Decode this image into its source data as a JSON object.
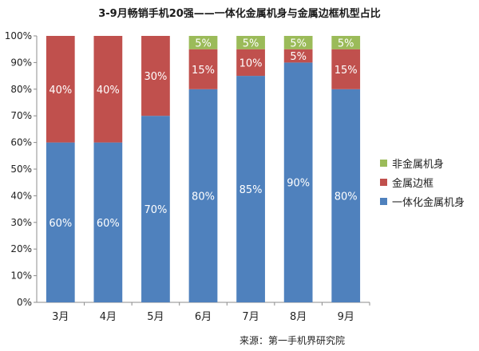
{
  "chart_data": {
    "type": "bar",
    "stacked": true,
    "title": "3-9月畅销手机20强——一体化金属机身与金属边框机型占比",
    "categories": [
      "3月",
      "4月",
      "5月",
      "6月",
      "7月",
      "8月",
      "9月"
    ],
    "series": [
      {
        "name": "一体化金属机身",
        "color": "#4f81bd",
        "values": [
          60,
          60,
          70,
          80,
          85,
          90,
          80
        ],
        "labels": [
          "60%",
          "60%",
          "70%",
          "80%",
          "85%",
          "90%",
          "80%"
        ]
      },
      {
        "name": "金属边框",
        "color": "#c0504d",
        "values": [
          40,
          40,
          30,
          15,
          10,
          5,
          15
        ],
        "labels": [
          "40%",
          "40%",
          "30%",
          "15%",
          "10%",
          "5%",
          "15%"
        ]
      },
      {
        "name": "非金属机身",
        "color": "#9bbb59",
        "values": [
          0,
          0,
          0,
          5,
          5,
          5,
          5
        ],
        "labels": [
          "",
          "",
          "",
          "5%",
          "5%",
          "5%",
          "5%"
        ]
      }
    ],
    "ylim": [
      0,
      100
    ],
    "yticks": [
      "0%",
      "10%",
      "20%",
      "30%",
      "40%",
      "50%",
      "60%",
      "70%",
      "80%",
      "90%",
      "100%"
    ],
    "legend_position": "right",
    "legend_order": [
      "非金属机身",
      "金属边框",
      "一体化金属机身"
    ],
    "grid": false
  },
  "source": "来源：第一手机界研究院"
}
